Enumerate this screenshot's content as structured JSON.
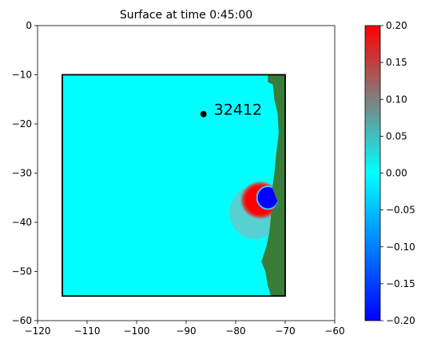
{
  "chart_data": {
    "type": "heatmap",
    "title": "Surface at time 0:45:00",
    "xlabel": "",
    "ylabel": "",
    "xlim": [
      -120,
      -60
    ],
    "ylim": [
      -60,
      0
    ],
    "xticks": [
      -120,
      -110,
      -100,
      -90,
      -80,
      -70,
      -60
    ],
    "yticks": [
      0,
      -10,
      -20,
      -30,
      -40,
      -50,
      -60
    ],
    "xtick_labels": [
      "−120",
      "−110",
      "−100",
      "−90",
      "−80",
      "−70",
      "−60"
    ],
    "ytick_labels": [
      "0",
      "−10",
      "−20",
      "−30",
      "−40",
      "−50",
      "−60"
    ],
    "grid": false,
    "domain_box": {
      "x": [
        -115,
        -70
      ],
      "y": [
        -55,
        -10
      ]
    },
    "background_value": 0.0,
    "land_color": "#3a7d3a",
    "features": [
      {
        "name": "positive ring",
        "center": [
          -75,
          -35.5
        ],
        "radius": 4,
        "value": 0.2
      },
      {
        "name": "negative core",
        "center": [
          -73.5,
          -35
        ],
        "radius": 2.2,
        "value": -0.2
      }
    ],
    "gauge": {
      "label": "32412",
      "x": -86.5,
      "y": -18
    },
    "colorbar": {
      "min": -0.2,
      "max": 0.2,
      "ticks": [
        0.2,
        0.15,
        0.1,
        0.05,
        0.0,
        -0.05,
        -0.1,
        -0.15,
        -0.2
      ],
      "tick_labels": [
        "0.20",
        "0.15",
        "0.10",
        "0.05",
        "0.00",
        "−0.05",
        "−0.10",
        "−0.15",
        "−0.20"
      ],
      "colors": [
        "#0000ff",
        "#00ffff",
        "#808080",
        "#ff0000"
      ]
    }
  }
}
